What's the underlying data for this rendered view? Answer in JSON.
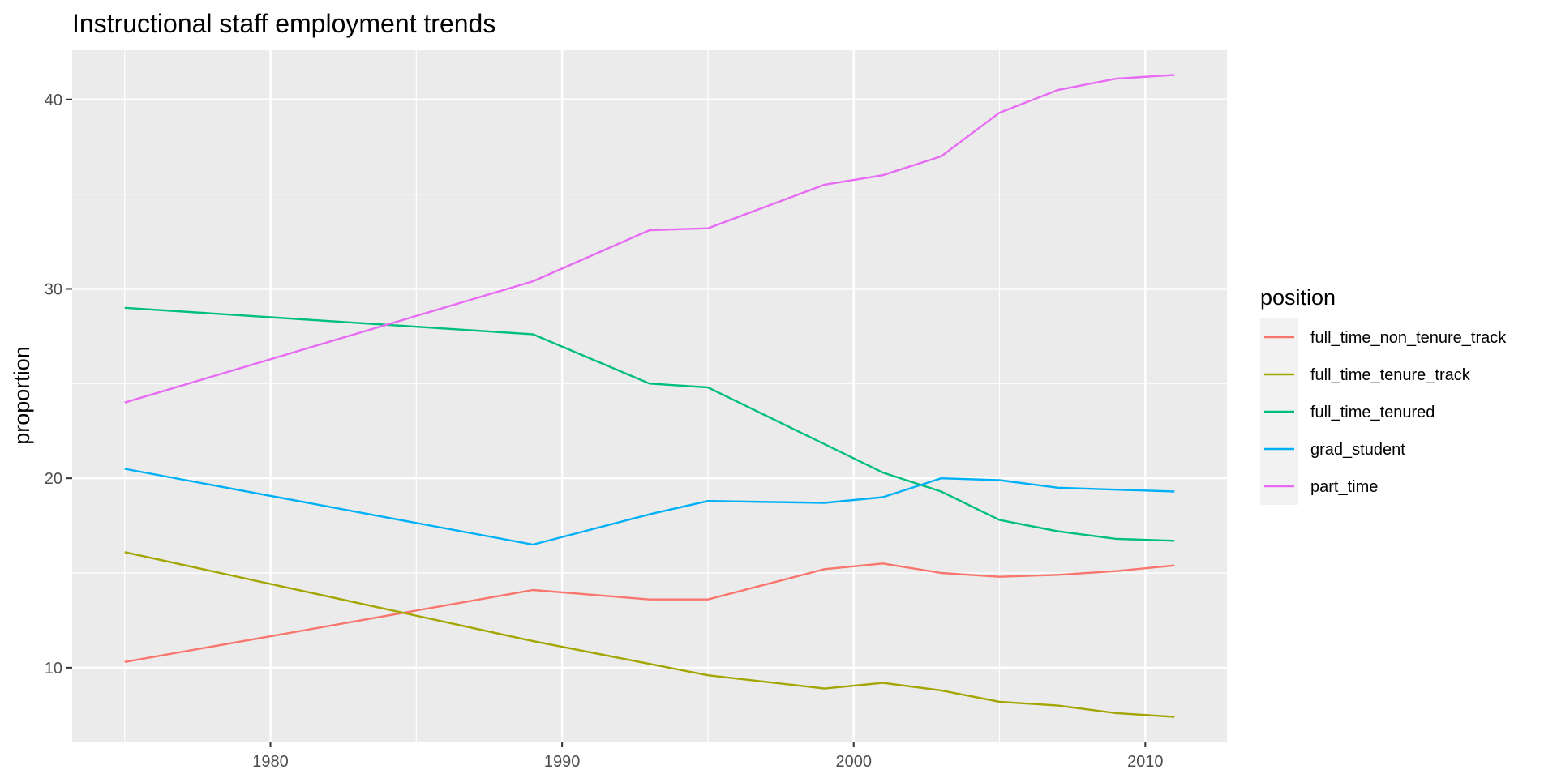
{
  "chart_data": {
    "type": "line",
    "title": "Instructional staff employment trends",
    "xlabel": "",
    "ylabel": "proportion",
    "xlim": [
      1973.2,
      2012.8
    ],
    "ylim": [
      6.1,
      42.6
    ],
    "x_ticks": [
      1980,
      1990,
      2000,
      2010
    ],
    "y_ticks": [
      10,
      20,
      30,
      40
    ],
    "grid": true,
    "legend": {
      "title": "position",
      "placement": "right"
    },
    "x": [
      1975,
      1989,
      1993,
      1995,
      1999,
      2001,
      2003,
      2005,
      2007,
      2009,
      2011
    ],
    "series": [
      {
        "name": "full_time_non_tenure_track",
        "color": "#F8766D",
        "values": [
          10.3,
          14.1,
          13.6,
          13.6,
          15.2,
          15.5,
          15.0,
          14.8,
          14.9,
          15.1,
          15.4
        ]
      },
      {
        "name": "full_time_tenure_track",
        "color": "#A3A500",
        "values": [
          16.1,
          11.4,
          10.2,
          9.6,
          8.9,
          9.2,
          8.8,
          8.2,
          8.0,
          7.6,
          7.4
        ]
      },
      {
        "name": "full_time_tenured",
        "color": "#00BF7D",
        "values": [
          29.0,
          27.6,
          25.0,
          24.8,
          21.8,
          20.3,
          19.3,
          17.8,
          17.2,
          16.8,
          16.7
        ]
      },
      {
        "name": "grad_student",
        "color": "#00B0F6",
        "values": [
          20.5,
          16.5,
          18.1,
          18.8,
          18.7,
          19.0,
          20.0,
          19.9,
          19.5,
          19.4,
          19.3
        ]
      },
      {
        "name": "part_time",
        "color": "#E76BF3",
        "values": [
          24.0,
          30.4,
          33.1,
          33.2,
          35.5,
          36.0,
          37.0,
          39.3,
          40.5,
          41.1,
          41.3
        ]
      }
    ]
  }
}
